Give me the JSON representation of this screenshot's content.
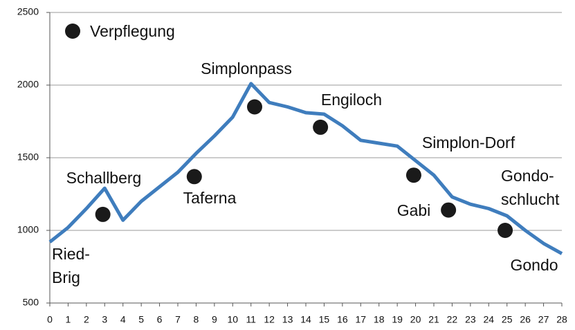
{
  "chart_data": {
    "type": "line",
    "x": [
      0,
      1,
      2,
      3,
      4,
      5,
      6,
      7,
      8,
      9,
      10,
      11,
      12,
      13,
      14,
      15,
      16,
      17,
      18,
      19,
      20,
      21,
      22,
      23,
      24,
      25,
      26,
      27,
      28
    ],
    "xlim": [
      0,
      28
    ],
    "xticks": [
      0,
      1,
      2,
      3,
      4,
      5,
      6,
      7,
      8,
      9,
      10,
      11,
      12,
      13,
      14,
      15,
      16,
      17,
      18,
      19,
      20,
      21,
      22,
      23,
      24,
      25,
      26,
      27,
      28
    ],
    "ylim": [
      500,
      2500
    ],
    "yticks": [
      500,
      1000,
      1500,
      2000,
      2500
    ],
    "grid": true,
    "series": [
      {
        "color": "#3f7dbd",
        "values": [
          920,
          1020,
          1150,
          1290,
          1070,
          1200,
          1300,
          1400,
          1530,
          1650,
          1780,
          2010,
          1880,
          1850,
          1810,
          1800,
          1720,
          1620,
          1600,
          1580,
          1480,
          1380,
          1230,
          1180,
          1150,
          1100,
          1000,
          910,
          840
        ]
      },
      {
        "name": "Verpflegung",
        "type": "scatter",
        "color": "#1a1a1a",
        "x": [
          2.9,
          7.9,
          11.2,
          14.8,
          19.9,
          21.8,
          24.9
        ],
        "values": [
          1110,
          1370,
          1850,
          1710,
          1380,
          1140,
          1000
        ]
      }
    ],
    "annotations": [
      [
        "Simplonpass"
      ],
      [
        "Engiloch"
      ],
      [
        "Schallberg"
      ],
      [
        "Taferna"
      ],
      [
        "Simplon-Dorf"
      ],
      [
        "Gabi"
      ],
      [
        "Gondo-",
        "schlucht"
      ],
      [
        "Ried-",
        "Brig"
      ],
      [
        "Gondo"
      ]
    ]
  }
}
